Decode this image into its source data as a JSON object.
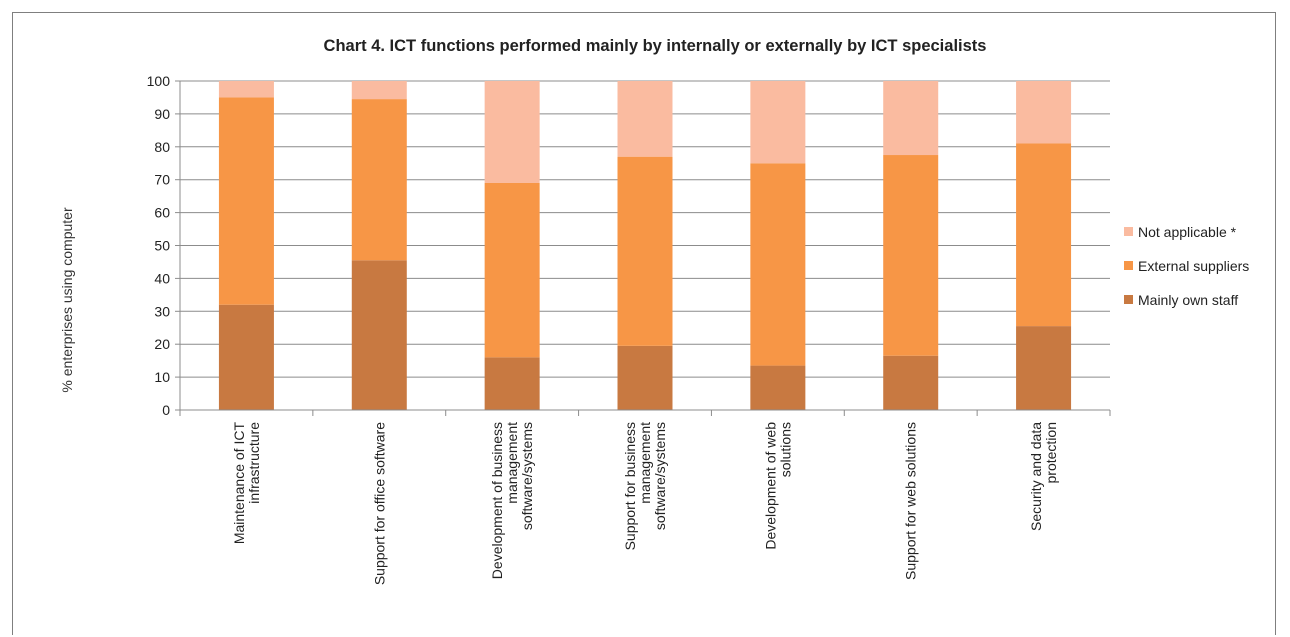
{
  "chart_data": {
    "type": "bar",
    "stacked": true,
    "title": "Chart 4. ICT functions performed mainly by internally or externally by ICT specialists",
    "ylabel": "% enterprises using computer",
    "xlabel": "",
    "ylim": [
      0,
      100
    ],
    "yticks": [
      0,
      10,
      20,
      30,
      40,
      50,
      60,
      70,
      80,
      90,
      100
    ],
    "grid": true,
    "legend_position": "right",
    "categories": [
      [
        "Maintenance of  ICT",
        "infrastructure"
      ],
      [
        "Support for office software"
      ],
      [
        "Development of business",
        "management",
        "software/systems"
      ],
      [
        "Support for business",
        "management",
        "software/systems"
      ],
      [
        "Development of web",
        "solutions"
      ],
      [
        "Support for web solutions"
      ],
      [
        "Security and data",
        "protection"
      ]
    ],
    "series": [
      {
        "name": "Mainly own staff",
        "color": "#c87941",
        "values": [
          32,
          45.5,
          16,
          19.5,
          13.5,
          16.5,
          25.5
        ]
      },
      {
        "name": "External suppliers",
        "color": "#f79646",
        "values": [
          63,
          49,
          53,
          57.5,
          61.5,
          61,
          55.5
        ]
      },
      {
        "name": "Not applicable *",
        "color": "#fabba0",
        "values": [
          5,
          5.5,
          31,
          23,
          25,
          22.5,
          19
        ]
      }
    ],
    "legend_order": [
      2,
      1,
      0
    ]
  }
}
